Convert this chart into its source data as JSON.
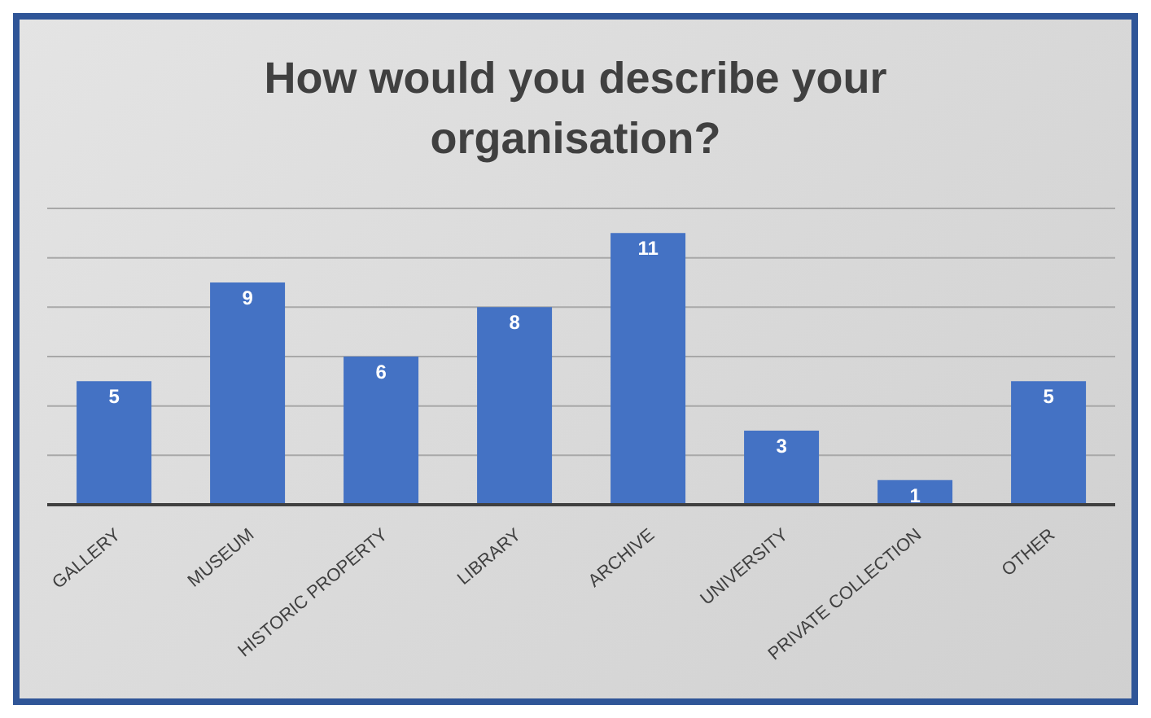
{
  "chart_data": {
    "type": "bar",
    "title": "How would you describe your organisation?",
    "categories": [
      "GALLERY",
      "MUSEUM",
      "HISTORIC PROPERTY",
      "LIBRARY",
      "ARCHIVE",
      "UNIVERSITY",
      "PRIVATE COLLECTION",
      "OTHER"
    ],
    "values": [
      5,
      9,
      6,
      8,
      11,
      3,
      1,
      5
    ],
    "color": "#4472c4",
    "ylim": [
      0,
      12
    ],
    "yticks": [
      {
        "value": 0,
        "label": null
      },
      {
        "value": 2,
        "label": null
      },
      {
        "value": 4,
        "label": null
      },
      {
        "value": 6,
        "label": null
      },
      {
        "value": 8,
        "label": null
      },
      {
        "value": 10,
        "label": null
      },
      {
        "value": 12,
        "label": null
      }
    ],
    "tick_labels": "x",
    "grid": "y",
    "data_labels": true
  }
}
